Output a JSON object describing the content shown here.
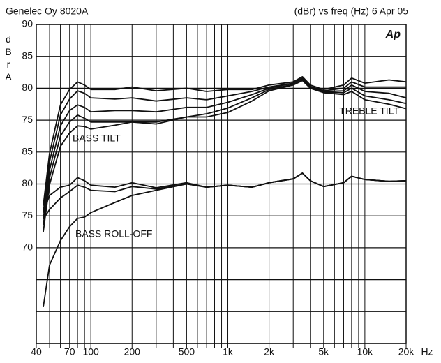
{
  "chart_data": {
    "type": "line",
    "title": "Genelec Oy 8020A",
    "subtitle": "(dBr) vs freq (Hz) 6 Apr 05",
    "logo": "Ap",
    "ylabel": "dBrA",
    "xlabel": "Hz",
    "annotations": [
      "BASS TILT",
      "TREBLE TILT",
      "BASS ROLL-OFF"
    ],
    "xscale": "log",
    "grid": true,
    "xlim": [
      40,
      20000
    ],
    "ylim": [
      40,
      90
    ],
    "xticks": [
      40,
      {
        "value": 50,
        "label": null
      },
      {
        "value": 60,
        "label": null
      },
      70,
      {
        "value": 80,
        "label": null
      },
      {
        "value": 90,
        "label": null
      },
      100,
      200,
      {
        "value": 300,
        "label": null
      },
      {
        "value": 400,
        "label": null
      },
      500,
      {
        "value": 600,
        "label": null
      },
      {
        "value": 700,
        "label": null
      },
      {
        "value": 800,
        "label": null
      },
      {
        "value": 900,
        "label": null
      },
      {
        "value": 1000,
        "label": "1k"
      },
      {
        "value": 2000,
        "label": "2k"
      },
      {
        "value": 3000,
        "label": null
      },
      {
        "value": 4000,
        "label": null
      },
      {
        "value": 5000,
        "label": "5k"
      },
      {
        "value": 6000,
        "label": null
      },
      {
        "value": 7000,
        "label": null
      },
      {
        "value": 8000,
        "label": null
      },
      {
        "value": 9000,
        "label": null
      },
      {
        "value": 10000,
        "label": "10k"
      },
      {
        "value": 20000,
        "label": "20k"
      }
    ],
    "yticks": [
      90,
      85,
      80,
      75,
      {
        "value": 70,
        "label": "85"
      },
      {
        "value": 65,
        "label": "80"
      },
      {
        "value": 60,
        "label": "75"
      },
      {
        "value": 55,
        "label": "70"
      },
      {
        "value": 50,
        "label": null
      },
      {
        "value": 45,
        "label": null
      },
      {
        "value": 40,
        "label": null
      }
    ],
    "x": [
      45,
      50,
      60,
      70,
      80,
      90,
      100,
      150,
      200,
      300,
      500,
      700,
      1000,
      1500,
      2000,
      3000,
      3500,
      4000,
      5000,
      7000,
      8000,
      10000,
      15000,
      20000
    ],
    "series": [
      {
        "color": "#111111",
        "values": [
          61.6,
          69.8,
          77.4,
          79.8,
          81,
          80.5,
          79.8,
          79.8,
          80.2,
          79.6,
          80,
          79.5,
          79.8,
          79.8,
          80.5,
          81,
          81.8,
          80.5,
          79.8,
          80.5,
          81.6,
          80.8,
          81.3,
          81
        ]
      },
      {
        "color": "#111111",
        "values": [
          60.5,
          68.5,
          75.8,
          78.3,
          79.6,
          79.2,
          78.5,
          78.3,
          78.5,
          78,
          78.5,
          78.2,
          78.8,
          79.5,
          80.2,
          80.8,
          81.6,
          80.3,
          79.6,
          80,
          81,
          80.2,
          80.2,
          80.2
        ]
      },
      {
        "color": "#111111",
        "values": [
          59.5,
          67.2,
          74.1,
          76.5,
          77.4,
          77,
          76.3,
          76.5,
          76.5,
          76.3,
          77,
          77,
          77.8,
          79,
          80,
          80.8,
          81.5,
          80.2,
          79.5,
          79.6,
          80.5,
          79.5,
          79.2,
          78.5
        ]
      },
      {
        "color": "#111111",
        "values": [
          58.5,
          66,
          72.5,
          74.7,
          75.8,
          75.3,
          74.7,
          74.7,
          74.7,
          74.4,
          75.5,
          76,
          76.9,
          78.5,
          79.8,
          80.6,
          81.3,
          80,
          79.4,
          79.3,
          80,
          78.8,
          78.2,
          77.6
        ]
      },
      {
        "color": "#111111",
        "values": [
          57.5,
          64.9,
          70.9,
          73,
          74.1,
          74,
          73.6,
          74.2,
          74.7,
          74.7,
          75.5,
          75.5,
          76.2,
          78,
          79.6,
          80.5,
          81.2,
          80,
          79.3,
          79,
          79.5,
          78.2,
          77.5,
          76.8
        ]
      },
      {
        "color": "#111111",
        "values": [
          60.5,
          63.2,
          64.5,
          64.8,
          66,
          65.5,
          64.8,
          64.5,
          65.2,
          64.4,
          65.2,
          64.5,
          64.8,
          64.5,
          65.2,
          65.8,
          66.7,
          65.5,
          64.6,
          65.2,
          66.2,
          65.7,
          65.4,
          65.5
        ]
      },
      {
        "color": "#111111",
        "values": [
          59.5,
          61,
          62.8,
          63.8,
          64.8,
          64.5,
          64,
          63.8,
          64.6,
          64.2,
          65,
          64.5,
          64.8,
          64.5,
          65.2,
          65.8,
          66.7,
          65.5,
          64.6,
          65.2,
          66.2,
          65.7,
          65.4,
          65.5
        ]
      },
      {
        "color": "#111111",
        "values": [
          45.7,
          52.3,
          56.1,
          58.3,
          59.6,
          59.8,
          60.5,
          62.1,
          63.2,
          64,
          65,
          64.5,
          64.8,
          64.5,
          65.2,
          65.8,
          66.7,
          65.5,
          64.6,
          65.2,
          66.2,
          65.7,
          65.4,
          65.5
        ]
      }
    ]
  }
}
